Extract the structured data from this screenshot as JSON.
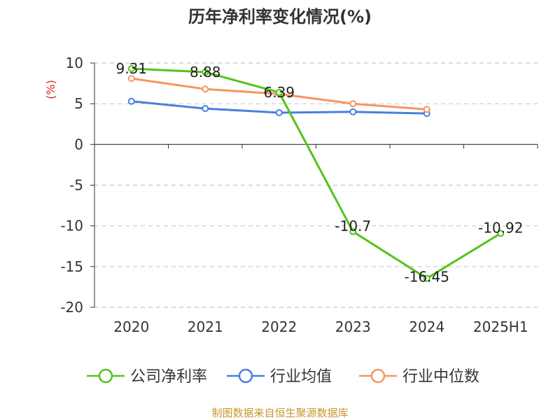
{
  "title": "历年净利率变化情况(%)",
  "source": "制图数据来自恒生聚源数据库",
  "chart_data": {
    "type": "line",
    "title": "历年净利率变化情况(%)",
    "ylabel": "(%)",
    "xlabel": "",
    "categories": [
      "2020",
      "2021",
      "2022",
      "2023",
      "2024",
      "2025H1"
    ],
    "ylim": [
      -20,
      10
    ],
    "yticks": [
      10,
      5,
      0,
      -5,
      -10,
      -15,
      -20
    ],
    "grid": true,
    "legend_position": "bottom",
    "series": [
      {
        "name": "公司净利率",
        "color": "#52c41a",
        "values": [
          9.31,
          8.88,
          6.39,
          -10.7,
          -16.45,
          -10.92
        ],
        "labels": [
          "9.31",
          "8.88",
          "6.39",
          "-10.7",
          "-16.45",
          "-10.92"
        ]
      },
      {
        "name": "行业均值",
        "color": "#4a7ee0",
        "values": [
          5.3,
          4.4,
          3.9,
          4.0,
          3.8,
          null
        ]
      },
      {
        "name": "行业中位数",
        "color": "#f79560",
        "values": [
          8.1,
          6.8,
          6.2,
          5.0,
          4.3,
          null
        ]
      }
    ]
  }
}
